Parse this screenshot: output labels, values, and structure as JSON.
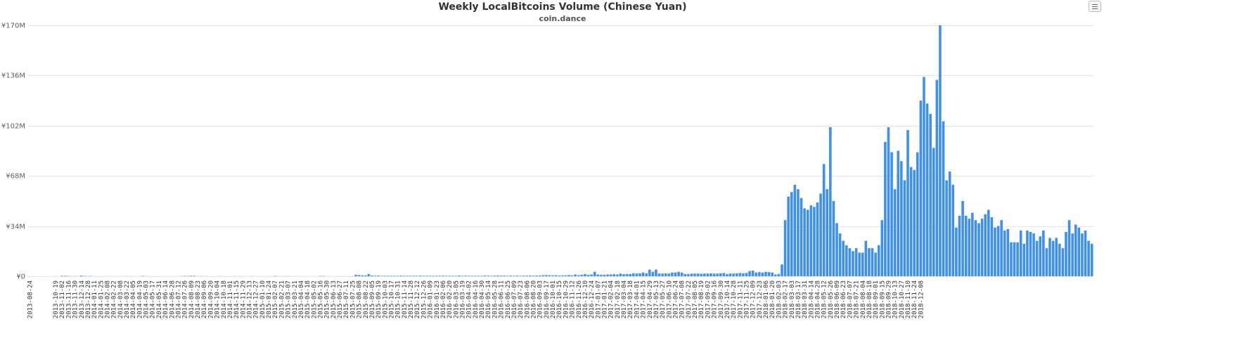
{
  "chart_data": {
    "type": "bar",
    "title": "Weekly LocalBitcoins Volume (Chinese Yuan)",
    "subtitle": "coin.dance",
    "xlabel": "",
    "ylabel": "",
    "ylim": [
      0,
      170000000
    ],
    "yticks": [
      0,
      34000000,
      68000000,
      102000000,
      136000000,
      170000000
    ],
    "ytick_labels": [
      "¥0",
      "¥34M",
      "¥68M",
      "¥102M",
      "¥136M",
      "¥170M"
    ],
    "grid": true,
    "color": "#3d8ff0",
    "start_date": "2013-08-24",
    "tick_labels": [
      "2013-08-24",
      "2013-10-19",
      "2013-11-02",
      "2013-11-16",
      "2013-11-30",
      "2013-12-14",
      "2013-12-28",
      "2014-01-11",
      "2014-01-25",
      "2014-02-08",
      "2014-02-22",
      "2014-03-08",
      "2014-03-22",
      "2014-04-05",
      "2014-04-19",
      "2014-05-03",
      "2014-05-17",
      "2014-05-31",
      "2014-06-14",
      "2014-06-28",
      "2014-07-12",
      "2014-07-26",
      "2014-08-09",
      "2014-08-23",
      "2014-09-06",
      "2014-09-20",
      "2014-10-04",
      "2014-10-18",
      "2014-11-01",
      "2014-11-15",
      "2014-11-29",
      "2014-12-13",
      "2014-12-27",
      "2015-01-10",
      "2015-01-24",
      "2015-02-07",
      "2015-02-21",
      "2015-03-07",
      "2015-03-21",
      "2015-04-04",
      "2015-04-18",
      "2015-05-02",
      "2015-05-16",
      "2015-05-30",
      "2015-06-13",
      "2015-06-27",
      "2015-07-11",
      "2015-07-25",
      "2015-08-08",
      "2015-08-22",
      "2015-09-05",
      "2015-09-19",
      "2015-10-03",
      "2015-10-17",
      "2015-10-31",
      "2015-11-14",
      "2015-11-28",
      "2015-12-12",
      "2015-12-26",
      "2016-01-09",
      "2016-01-23",
      "2016-02-06",
      "2016-02-20",
      "2016-03-05",
      "2016-03-19",
      "2016-04-02",
      "2016-04-16",
      "2016-04-30",
      "2016-05-14",
      "2016-05-28",
      "2016-06-11",
      "2016-06-25",
      "2016-07-09",
      "2016-07-23",
      "2016-08-06",
      "2016-08-20",
      "2016-09-03",
      "2016-09-17",
      "2016-10-01",
      "2016-10-15",
      "2016-10-29",
      "2016-11-12",
      "2016-11-26",
      "2016-12-10",
      "2016-12-24",
      "2017-01-07",
      "2017-01-21",
      "2017-02-04",
      "2017-02-18",
      "2017-03-04",
      "2017-03-18",
      "2017-04-01",
      "2017-04-15",
      "2017-04-29",
      "2017-05-13",
      "2017-05-27",
      "2017-06-10",
      "2017-06-24",
      "2017-07-08",
      "2017-07-22",
      "2017-08-05",
      "2017-08-19",
      "2017-09-02",
      "2017-09-16",
      "2017-09-30",
      "2017-10-14",
      "2017-10-28",
      "2017-11-11",
      "2017-11-25",
      "2017-12-09",
      "2017-12-23",
      "2018-01-06",
      "2018-01-20",
      "2018-02-03",
      "2018-02-17",
      "2018-03-03",
      "2018-03-17",
      "2018-03-31",
      "2018-04-14",
      "2018-04-28",
      "2018-05-12",
      "2018-05-26",
      "2018-06-09",
      "2018-06-23",
      "2018-07-07",
      "2018-07-21",
      "2018-08-04",
      "2018-08-18",
      "2018-09-01",
      "2018-09-15",
      "2018-09-29",
      "2018-10-13",
      "2018-10-27",
      "2018-11-10",
      "2018-11-24",
      "2018-12-08"
    ],
    "values": [
      0.02,
      0.02,
      0.02,
      0.02,
      0.02,
      0.02,
      0.02,
      0.02,
      0.05,
      0.05,
      0.3,
      0.3,
      0.2,
      0.1,
      0.1,
      0.1,
      0.4,
      0.2,
      0.1,
      0.2,
      0.05,
      0.05,
      0.05,
      0.05,
      0.05,
      0.05,
      0.05,
      0.05,
      0.05,
      0.05,
      0.1,
      0.05,
      0.05,
      0.05,
      0.05,
      0.2,
      0.1,
      0.05,
      0.05,
      0.05,
      0.05,
      0.05,
      0.05,
      0.05,
      0.05,
      0.05,
      0.05,
      0.1,
      0.2,
      0.2,
      0.3,
      0.3,
      0.1,
      0.1,
      0.1,
      0.05,
      0.05,
      0.05,
      0.05,
      0.1,
      0.05,
      0.05,
      0.05,
      0.05,
      0.05,
      0.1,
      0.05,
      0.05,
      0.05,
      0.1,
      0.05,
      0.05,
      0.05,
      0.05,
      0.05,
      0.05,
      0.2,
      0.05,
      0.05,
      0.1,
      0.1,
      0.05,
      0.05,
      0.05,
      0.05,
      0.05,
      0.05,
      0.05,
      0.05,
      0.05,
      0.2,
      0.2,
      0.05,
      0.05,
      0.05,
      0.05,
      0.05,
      0.05,
      0.05,
      0.05,
      0.05,
      1.0,
      0.8,
      0.6,
      0.5,
      1.5,
      0.5,
      0.4,
      0.5,
      0.3,
      0.3,
      0.3,
      0.3,
      0.3,
      0.3,
      0.4,
      0.3,
      0.3,
      0.3,
      0.3,
      0.3,
      0.4,
      0.3,
      0.3,
      0.3,
      0.3,
      0.3,
      0.3,
      0.4,
      0.3,
      0.3,
      0.3,
      0.3,
      0.5,
      0.3,
      0.4,
      0.3,
      0.3,
      0.3,
      0.3,
      0.3,
      0.5,
      0.4,
      0.3,
      0.4,
      0.5,
      0.4,
      0.4,
      0.3,
      0.4,
      0.3,
      0.4,
      0.3,
      0.4,
      0.4,
      0.5,
      0.4,
      0.5,
      0.5,
      0.7,
      0.8,
      0.7,
      0.6,
      0.7,
      0.5,
      0.6,
      0.6,
      0.8,
      0.6,
      1.2,
      0.7,
      1.0,
      1.5,
      1.0,
      1.2,
      3.0,
      1.2,
      1.0,
      1.0,
      1.2,
      1.2,
      1.4,
      1.2,
      1.8,
      1.4,
      1.5,
      1.5,
      2.0,
      1.8,
      2.0,
      2.5,
      2.0,
      4.5,
      3.0,
      4.5,
      1.8,
      1.8,
      2.0,
      1.8,
      2.5,
      2.5,
      3.0,
      2.5,
      1.5,
      1.5,
      1.8,
      1.8,
      1.8,
      1.7,
      1.8,
      1.8,
      2.0,
      1.8,
      1.8,
      2.0,
      2.2,
      1.5,
      1.8,
      1.8,
      2.0,
      2.2,
      2.0,
      2.2,
      3.5,
      3.8,
      2.5,
      2.8,
      2.5,
      3.0,
      2.8,
      2.5,
      1.2,
      1.5,
      8,
      38,
      54,
      57,
      62,
      59,
      53,
      46,
      45,
      48,
      47,
      50,
      56,
      76,
      59,
      101,
      51,
      36,
      29,
      24,
      21,
      19,
      17,
      19,
      16,
      16,
      24,
      19,
      19,
      16,
      21,
      38,
      91,
      101,
      84,
      59,
      85,
      78,
      65,
      99,
      74,
      72,
      84,
      119,
      135,
      117,
      110,
      87,
      133,
      170,
      105,
      65,
      71,
      62,
      33,
      41,
      51,
      41,
      39,
      43,
      38,
      36,
      39,
      42,
      45,
      40,
      33,
      34,
      38,
      31,
      32,
      23,
      23,
      23,
      31,
      22,
      31,
      30,
      29,
      24,
      27,
      31,
      19,
      26,
      24,
      26,
      22,
      19,
      30,
      38,
      29,
      35,
      33,
      29,
      31,
      24,
      22
    ],
    "value_scale": 1000000
  },
  "ui": {
    "menu_icon": "hamburger-icon"
  }
}
